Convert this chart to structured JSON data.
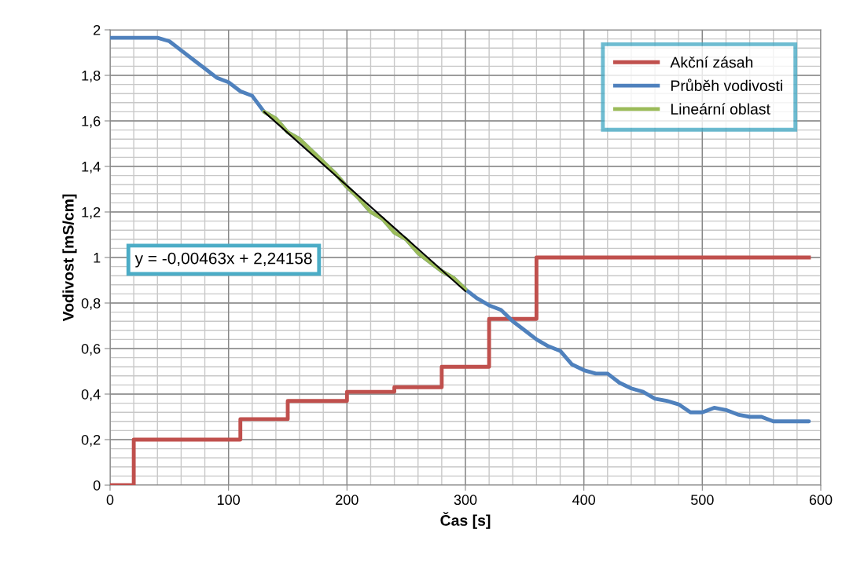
{
  "chart_data": {
    "type": "line",
    "xlabel": "Čas [s]",
    "ylabel": "Vodivost [mS/cm]",
    "xlim": [
      0,
      600
    ],
    "xticks": [
      0,
      100,
      200,
      300,
      400,
      500,
      600
    ],
    "ylim": [
      0,
      2
    ],
    "yticks": [
      0,
      {
        "value": 0.2,
        "label": "0,2"
      },
      {
        "value": 0.4,
        "label": "0,4"
      },
      {
        "value": 0.6,
        "label": "0,6"
      },
      {
        "value": 0.8,
        "label": "0,8"
      },
      1,
      {
        "value": 1.2,
        "label": "1,2"
      },
      {
        "value": 1.4,
        "label": "1,4"
      },
      {
        "value": 1.6,
        "label": "1,6"
      },
      {
        "value": 1.8,
        "label": "1,8"
      },
      2
    ],
    "grid": true,
    "legend": "top right",
    "marker": "none",
    "line_style": "solid",
    "series": [
      {
        "name": "Akční zásah",
        "type": "step",
        "color": "#c0504d",
        "x": [
          0,
          20,
          110,
          150,
          200,
          240,
          280,
          320,
          360,
          590
        ],
        "values": [
          0,
          0.2,
          0.29,
          0.37,
          0.41,
          0.43,
          0.52,
          0.73,
          1.0,
          1.0
        ]
      },
      {
        "name": "Průběh vodivosti",
        "color": "#4f81bd",
        "x": [
          0,
          10,
          20,
          30,
          40,
          50,
          60,
          70,
          80,
          90,
          100,
          110,
          120,
          130,
          140,
          150,
          160,
          170,
          180,
          190,
          200,
          210,
          220,
          230,
          240,
          250,
          260,
          270,
          280,
          290,
          300,
          310,
          320,
          330,
          340,
          350,
          360,
          370,
          380,
          390,
          400,
          410,
          420,
          430,
          440,
          450,
          460,
          470,
          480,
          490,
          500,
          510,
          520,
          530,
          540,
          550,
          560,
          570,
          580,
          590
        ],
        "values": [
          1.965,
          1.965,
          1.965,
          1.965,
          1.965,
          1.95,
          1.91,
          1.87,
          1.83,
          1.79,
          1.77,
          1.73,
          1.71,
          1.64,
          1.61,
          1.55,
          1.52,
          1.47,
          1.42,
          1.37,
          1.31,
          1.26,
          1.2,
          1.17,
          1.11,
          1.08,
          1.02,
          0.98,
          0.94,
          0.91,
          0.86,
          0.82,
          0.79,
          0.77,
          0.72,
          0.68,
          0.64,
          0.61,
          0.59,
          0.53,
          0.505,
          0.49,
          0.49,
          0.45,
          0.425,
          0.41,
          0.38,
          0.37,
          0.355,
          0.32,
          0.32,
          0.34,
          0.33,
          0.31,
          0.3,
          0.3,
          0.28,
          0.28,
          0.28,
          0.28
        ]
      },
      {
        "name": "Lineární oblast",
        "color": "#9bbb59",
        "x": [
          130,
          140,
          150,
          160,
          170,
          180,
          190,
          200,
          210,
          220,
          230,
          240,
          250,
          260,
          270,
          280,
          290,
          300
        ],
        "values": [
          1.64,
          1.61,
          1.55,
          1.52,
          1.47,
          1.42,
          1.37,
          1.31,
          1.26,
          1.2,
          1.17,
          1.11,
          1.08,
          1.02,
          0.98,
          0.94,
          0.91,
          0.86
        ]
      },
      {
        "color": "#000000",
        "x": [
          130,
          300
        ],
        "values": [
          1.64,
          0.852
        ]
      }
    ],
    "annotations": [
      "y = -0,00463x + 2,24158"
    ]
  }
}
